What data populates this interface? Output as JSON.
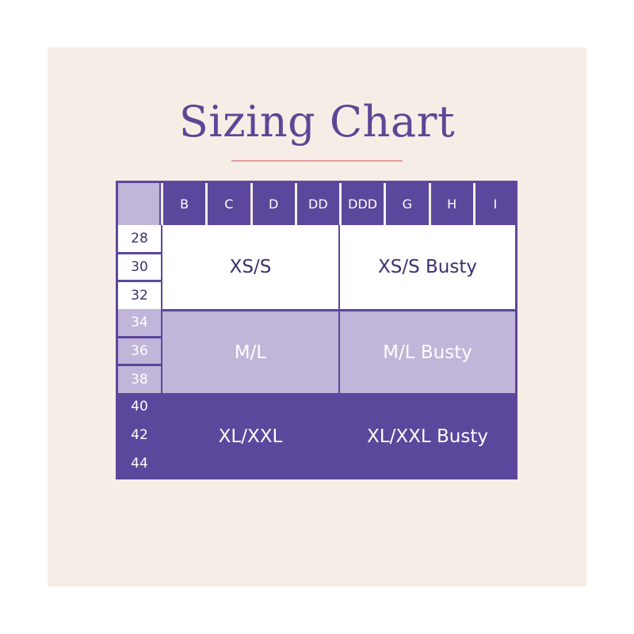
{
  "title": "Sizing Chart",
  "colors": {
    "dark": "#5b479c",
    "light": "#c1b5d9",
    "white": "#ffffff",
    "text": "#3d2f6e",
    "background": "#f6eee6"
  },
  "cup_sizes": [
    "B",
    "C",
    "D",
    "DD",
    "DDD",
    "G",
    "H",
    "I"
  ],
  "groups": [
    {
      "bands": [
        "28",
        "30",
        "32"
      ],
      "size": "XS/S",
      "busty": "XS/S Busty"
    },
    {
      "bands": [
        "34",
        "36",
        "38"
      ],
      "size": "M/L",
      "busty": "M/L Busty"
    },
    {
      "bands": [
        "40",
        "42",
        "44"
      ],
      "size": "XL/XXL",
      "busty": "XL/XXL Busty"
    }
  ]
}
